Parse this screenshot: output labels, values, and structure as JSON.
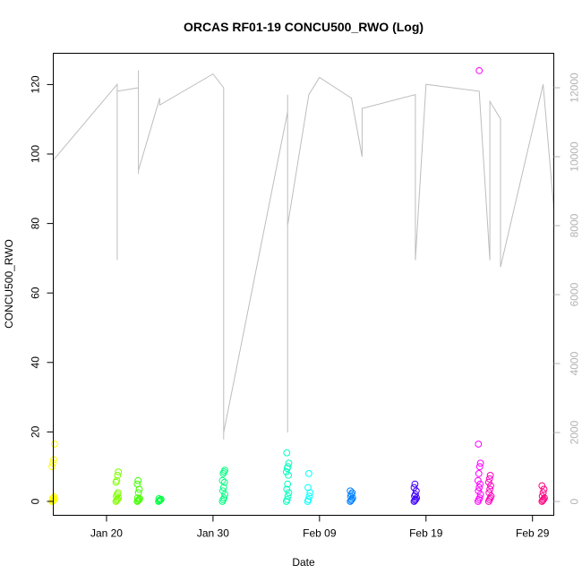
{
  "chart_data": {
    "type": "scatter",
    "title": "ORCAS RF01-19 CONCU500_RWO (Log)",
    "xlabel": "Date",
    "ylabel": "CONCU500_RWO",
    "xlim": [
      "2016-01-15",
      "2016-03-02"
    ],
    "ylim": [
      -4,
      129
    ],
    "y2lim": [
      -400,
      13000
    ],
    "x_ticks": [
      {
        "label": "Jan 20",
        "date": "2016-01-20"
      },
      {
        "label": "Jan 30",
        "date": "2016-01-30"
      },
      {
        "label": "Feb 09",
        "date": "2016-02-09"
      },
      {
        "label": "Feb 19",
        "date": "2016-02-19"
      },
      {
        "label": "Feb 29",
        "date": "2016-02-29"
      }
    ],
    "y_ticks": [
      0,
      20,
      40,
      60,
      80,
      100,
      120
    ],
    "y2_ticks": [
      0,
      2000,
      4000,
      6000,
      8000,
      10000,
      12000
    ],
    "grid": false,
    "secondary_series": {
      "axis": "right",
      "color": "#bdbdbd",
      "points": [
        [
          "2016-01-15",
          12200
        ],
        [
          "2016-01-15",
          9000
        ],
        [
          "2016-01-15",
          12200
        ],
        [
          "2016-01-15",
          9600
        ],
        [
          "2016-01-15",
          12200
        ],
        [
          "2016-01-15",
          9900
        ],
        [
          "2016-01-21",
          12100
        ],
        [
          "2016-01-21",
          7000
        ],
        [
          "2016-01-21",
          11900
        ],
        [
          "2016-01-23",
          12000
        ],
        [
          "2016-01-23",
          9500
        ],
        [
          "2016-01-23",
          12500
        ],
        [
          "2016-01-23",
          9600
        ],
        [
          "2016-01-25",
          11700
        ],
        [
          "2016-01-25",
          11500
        ],
        [
          "2016-01-30",
          12400
        ],
        [
          "2016-01-31",
          12000
        ],
        [
          "2016-01-31",
          1800
        ],
        [
          "2016-01-31",
          8000
        ],
        [
          "2016-01-31",
          2000
        ],
        [
          "2016-02-06",
          11300
        ],
        [
          "2016-02-06",
          11800
        ],
        [
          "2016-02-06",
          2000
        ],
        [
          "2016-02-06",
          8000
        ],
        [
          "2016-02-08",
          11800
        ],
        [
          "2016-02-09",
          12300
        ],
        [
          "2016-02-12",
          11700
        ],
        [
          "2016-02-13",
          10000
        ],
        [
          "2016-02-13",
          11400
        ],
        [
          "2016-02-18",
          11800
        ],
        [
          "2016-02-18",
          7000
        ],
        [
          "2016-02-19",
          12100
        ],
        [
          "2016-02-24",
          11900
        ],
        [
          "2016-02-25",
          7000
        ],
        [
          "2016-02-25",
          11600
        ],
        [
          "2016-02-26",
          11100
        ],
        [
          "2016-02-26",
          7000
        ],
        [
          "2016-02-26",
          9800
        ],
        [
          "2016-02-26",
          6800
        ],
        [
          "2016-03-01",
          12100
        ],
        [
          "2016-03-02",
          8500
        ],
        [
          "2016-03-02",
          12600
        ]
      ]
    },
    "flights": [
      {
        "date": "2016-01-15",
        "color": "#ffff00",
        "values": [
          0,
          0.2,
          0.4,
          0.6,
          0.8,
          1,
          1.3,
          10,
          11,
          12,
          16.5
        ]
      },
      {
        "date": "2016-01-21",
        "color": "#7fff00",
        "values": [
          0,
          0.3,
          0.6,
          1,
          1.5,
          2,
          2.5,
          5.5,
          6,
          7.5,
          8.5
        ]
      },
      {
        "date": "2016-01-23",
        "color": "#40ff00",
        "values": [
          0,
          0.2,
          0.5,
          0.8,
          1,
          2.5,
          3.5,
          5,
          6
        ]
      },
      {
        "date": "2016-01-25",
        "color": "#00ff40",
        "values": [
          0,
          0.2,
          0.4,
          0.6,
          0.8
        ]
      },
      {
        "date": "2016-01-31",
        "color": "#00ff80",
        "values": [
          0,
          0.5,
          1,
          2,
          3,
          4,
          5.5,
          6,
          8,
          8.5,
          9
        ]
      },
      {
        "date": "2016-02-06",
        "color": "#00ffbf",
        "values": [
          0,
          0.5,
          1.5,
          2.5,
          3.5,
          5,
          7.5,
          8.5,
          9.5,
          10,
          11,
          14
        ]
      },
      {
        "date": "2016-02-08",
        "color": "#00ffff",
        "values": [
          0,
          0.5,
          1.5,
          2.5,
          4,
          8
        ]
      },
      {
        "date": "2016-02-12",
        "color": "#0080ff",
        "values": [
          0,
          0.3,
          0.6,
          1,
          1.5,
          2,
          2.5,
          3
        ]
      },
      {
        "date": "2016-02-18",
        "color": "#4000ff",
        "values": [
          0,
          0.3,
          0.6,
          1,
          1.5,
          2,
          3,
          4,
          5
        ]
      },
      {
        "date": "2016-02-24",
        "color": "#ff00ff",
        "values": [
          0,
          0.5,
          1,
          2,
          3,
          4,
          5,
          6,
          8,
          10,
          11,
          16.5,
          124
        ]
      },
      {
        "date": "2016-02-25",
        "color": "#ff00bf",
        "values": [
          0,
          0.5,
          1,
          1.5,
          2.5,
          3.5,
          4.5,
          5.5,
          6.5,
          7.5
        ]
      },
      {
        "date": "2016-03-01",
        "color": "#ff0080",
        "values": [
          0,
          0.3,
          0.6,
          1,
          1.5,
          2.5,
          3.5,
          4.5
        ]
      }
    ]
  }
}
